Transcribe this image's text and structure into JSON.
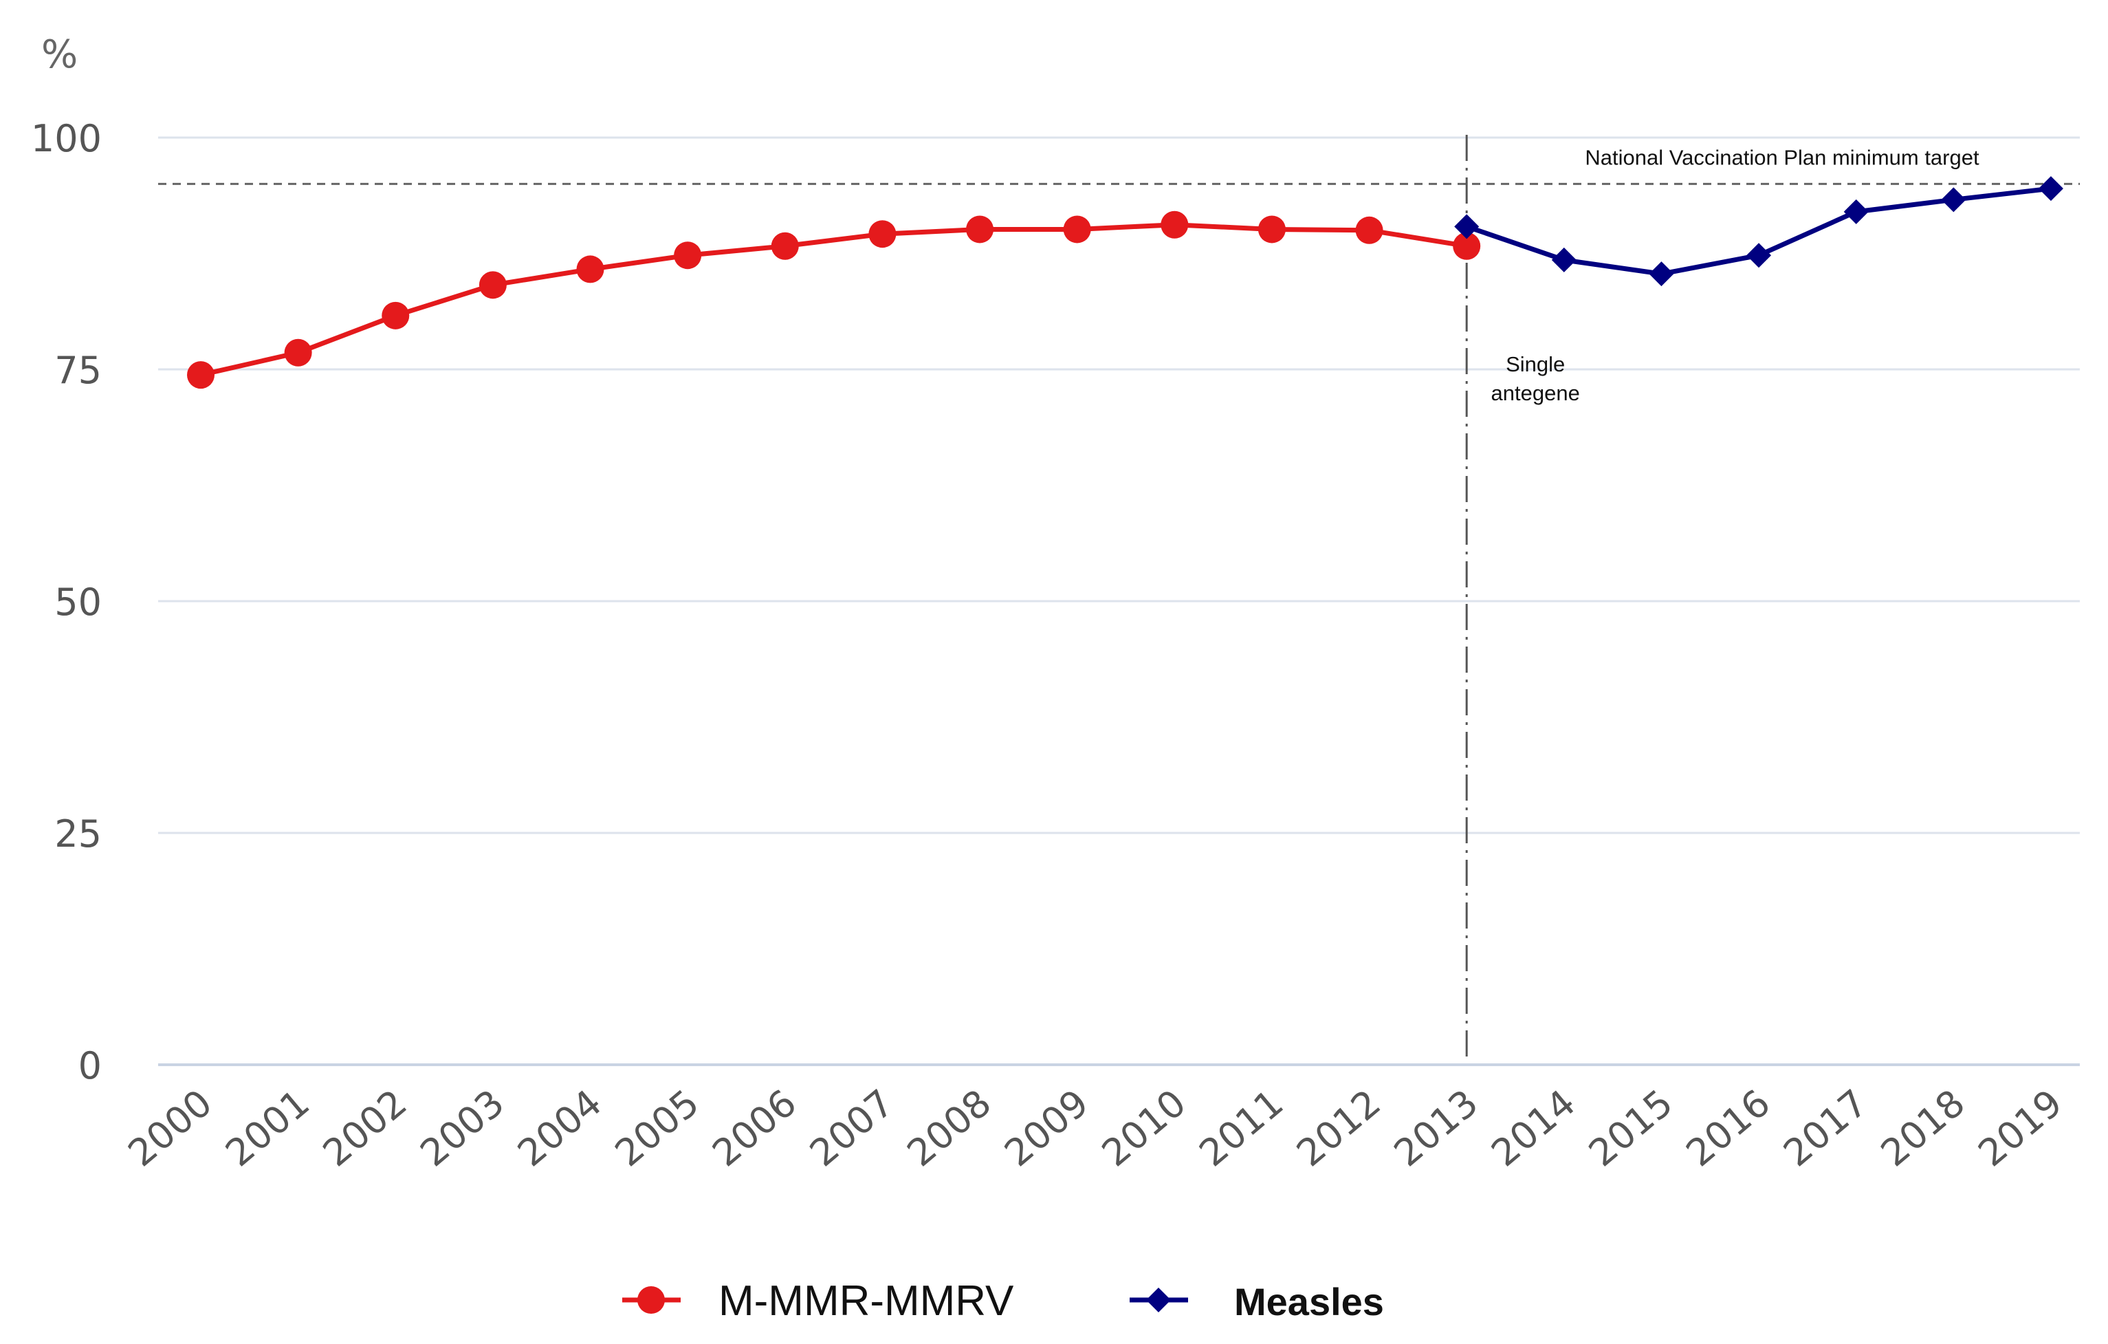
{
  "chart_data": {
    "type": "line",
    "title": "",
    "xlabel": "",
    "ylabel": "",
    "y_unit_label": "%",
    "ylim": [
      0,
      100
    ],
    "yticks": [
      0,
      25,
      50,
      75,
      100
    ],
    "grid": true,
    "categories": [
      "2000",
      "2001",
      "2002",
      "2003",
      "2004",
      "2005",
      "2006",
      "2007",
      "2008",
      "2009",
      "2010",
      "2011",
      "2012",
      "2013",
      "2014",
      "2015",
      "2016",
      "2017",
      "2018",
      "2019"
    ],
    "series": [
      {
        "name": "M-MMR-MMRV",
        "color": "#e41a1c",
        "marker": "circle",
        "x": [
          "2000",
          "2001",
          "2002",
          "2003",
          "2004",
          "2005",
          "2006",
          "2007",
          "2008",
          "2009",
          "2010",
          "2011",
          "2012",
          "2013"
        ],
        "values": [
          74.4,
          76.8,
          80.8,
          84.1,
          85.8,
          87.3,
          88.3,
          89.6,
          90.1,
          90.1,
          90.6,
          90.1,
          90.0,
          88.3
        ]
      },
      {
        "name": "Measles",
        "color": "#000080",
        "marker": "diamond",
        "x": [
          "2013",
          "2014",
          "2015",
          "2016",
          "2017",
          "2018",
          "2019"
        ],
        "values": [
          90.4,
          86.8,
          85.3,
          87.3,
          92.0,
          93.3,
          94.5
        ]
      }
    ],
    "reference_lines": [
      {
        "type": "horizontal",
        "value": 95,
        "style": "dashed",
        "label": "National Vaccination Plan minimum target"
      },
      {
        "type": "vertical",
        "at": "2013",
        "style": "dash-dot",
        "label_lines": [
          "Single",
          "antegene"
        ]
      }
    ],
    "legend": {
      "position": "bottom-center"
    }
  }
}
